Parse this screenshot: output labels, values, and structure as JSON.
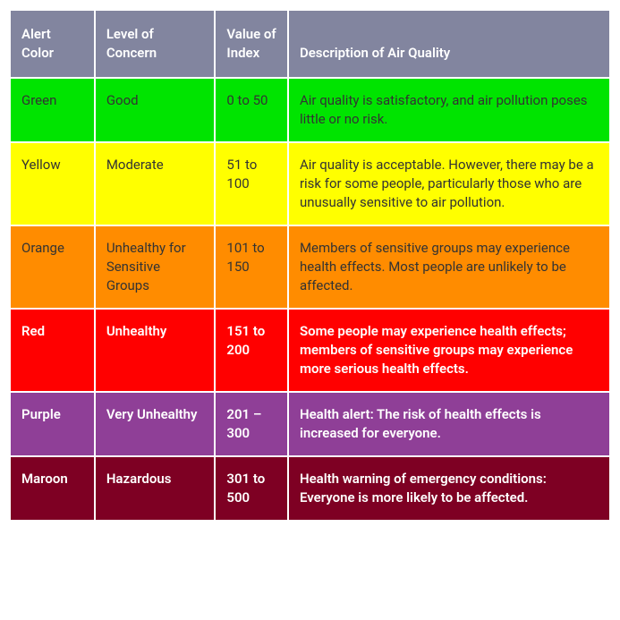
{
  "table": {
    "header": {
      "bg_color": "#82859f",
      "text_color": "#ffffff",
      "columns": [
        {
          "label": "Alert Color"
        },
        {
          "label": "Level of Concern"
        },
        {
          "label": "Value of Index"
        },
        {
          "label": "Description of Air Quality"
        }
      ]
    },
    "rows": [
      {
        "bg_color": "#00e400",
        "text_color": "#333333",
        "text_weight": "400",
        "alert_color": "Green",
        "level": "Good",
        "value": "0 to 50",
        "description": "Air quality is satisfactory, and air pollution poses little or no risk."
      },
      {
        "bg_color": "#ffff00",
        "text_color": "#333333",
        "text_weight": "400",
        "alert_color": "Yellow",
        "level": "Moderate",
        "value": "51 to 100",
        "description": "Air quality is acceptable. However, there may be a risk for some people, particularly those who are unusually sensitive to air pollution."
      },
      {
        "bg_color": "#ff8c00",
        "text_color": "#333333",
        "text_weight": "400",
        "alert_color": "Orange",
        "level": "Unhealthy for Sensitive Groups",
        "value": "101 to 150",
        "description": "Members of sensitive groups may experience health effects. Most people are unlikely to be affected."
      },
      {
        "bg_color": "#ff0000",
        "text_color": "#ffffff",
        "text_weight": "600",
        "alert_color": "Red",
        "level": "Unhealthy",
        "value": "151 to 200",
        "description": "Some people may experience health effects; members of sensitive groups may experience more serious health effects."
      },
      {
        "bg_color": "#8f3f97",
        "text_color": "#ffffff",
        "text_weight": "600",
        "alert_color": "Purple",
        "level": "Very Unhealthy",
        "value": "201 – 300",
        "description": "Health alert: The risk of health effects is increased for everyone."
      },
      {
        "bg_color": "#7e0023",
        "text_color": "#ffffff",
        "text_weight": "600",
        "alert_color": "Maroon",
        "level": "Hazardous",
        "value": "301 to 500",
        "description": "Health warning of emergency conditions: Everyone is more likely to be affected."
      }
    ]
  }
}
